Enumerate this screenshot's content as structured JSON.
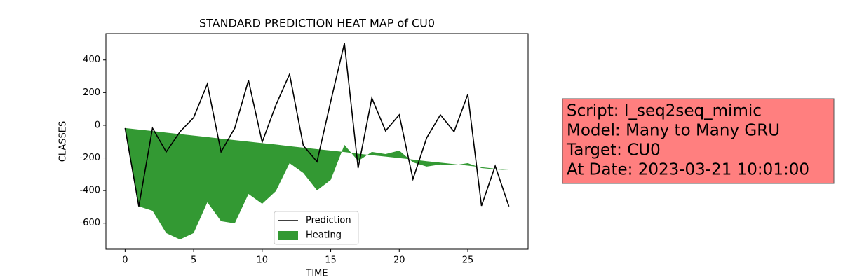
{
  "chart_data": {
    "type": "line",
    "title": "STANDARD PREDICTION HEAT MAP of CU0",
    "xlabel": "TIME",
    "ylabel": "CLASSES",
    "x": [
      0,
      1,
      2,
      3,
      4,
      5,
      6,
      7,
      8,
      9,
      10,
      11,
      12,
      13,
      14,
      15,
      16,
      17,
      18,
      19,
      20,
      21,
      22,
      23,
      24,
      25,
      26,
      27,
      28
    ],
    "series": [
      {
        "name": "Prediction",
        "type": "line",
        "color": "#000000",
        "values": [
          -17,
          -497,
          -17,
          -163,
          -40,
          47,
          253,
          -163,
          -17,
          275,
          -103,
          124,
          313,
          -124,
          -223,
          146,
          502,
          -262,
          167,
          -34,
          64,
          -330,
          -77,
          64,
          -39,
          189,
          -494,
          -249,
          -497
        ]
      },
      {
        "name": "Heating",
        "type": "area",
        "color": "#339933",
        "values": [
          -17,
          -497,
          -524,
          -661,
          -700,
          -661,
          -472,
          -588,
          -601,
          -421,
          -481,
          -403,
          -232,
          -292,
          -399,
          -335,
          -120,
          -219,
          -163,
          -176,
          -155,
          -227,
          -253,
          -240,
          -245,
          -232,
          -262,
          -270,
          -275
        ],
        "upper": [
          -17,
          -26,
          -35,
          -45,
          -54,
          -63,
          -72,
          -82,
          -91,
          -100,
          -109,
          -118,
          -128,
          -137,
          -146,
          -155,
          -164,
          -174,
          -183,
          -192,
          -201,
          -210,
          -220,
          -229,
          -238,
          -247,
          -257,
          -266,
          -275
        ]
      }
    ],
    "xlim": [
      -1.4,
      29.4
    ],
    "ylim": [
      -760,
      562
    ],
    "xticks": [
      0,
      5,
      10,
      15,
      20,
      25
    ],
    "yticks": [
      -600,
      -400,
      -200,
      0,
      200,
      400
    ],
    "legend": "lower center",
    "annotation": {
      "lines": [
        "Script: I_seq2seq_mimic",
        "Model: Many to Many GRU",
        "Target: CU0",
        "At Date: 2023-03-21 10:01:00"
      ],
      "color": "#ff7f7f"
    }
  }
}
